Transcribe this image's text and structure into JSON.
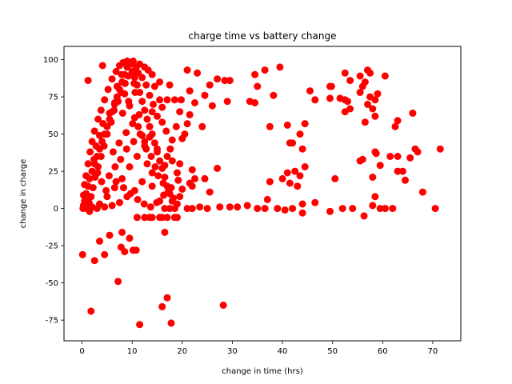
{
  "chart_data": {
    "type": "scatter",
    "title": "charge time vs battery change",
    "xlabel": "change in time (hrs)",
    "ylabel": "change in charge",
    "xlim": [
      -3.6,
      75.6
    ],
    "ylim": [
      -88.9,
      108.9
    ],
    "xticks": [
      0,
      10,
      20,
      30,
      40,
      50,
      60,
      70
    ],
    "yticks": [
      -75,
      -50,
      -25,
      0,
      25,
      50,
      75,
      100
    ],
    "grid": false,
    "marker_color": "#ff0000",
    "series": [
      {
        "points": [
          [
            0.1,
            -31
          ],
          [
            1.8,
            -69
          ],
          [
            2.5,
            -35
          ],
          [
            3.5,
            -22
          ],
          [
            4.5,
            -31
          ],
          [
            5.5,
            -18
          ],
          [
            7.2,
            -49
          ],
          [
            7.8,
            -26
          ],
          [
            8.0,
            -16
          ],
          [
            8.5,
            -29
          ],
          [
            9.5,
            -20
          ],
          [
            10.2,
            -28
          ],
          [
            10.8,
            -28
          ],
          [
            11.5,
            -78
          ],
          [
            16.0,
            -66
          ],
          [
            16.5,
            -16
          ],
          [
            17.0,
            -60
          ],
          [
            17.8,
            -77
          ],
          [
            28.2,
            -65
          ],
          [
            56.3,
            -5
          ],
          [
            1.2,
            86
          ],
          [
            4.1,
            96
          ],
          [
            21.0,
            93
          ],
          [
            23.0,
            91
          ],
          [
            29.5,
            86
          ],
          [
            36.5,
            93
          ],
          [
            39.5,
            95
          ],
          [
            34.5,
            90
          ],
          [
            27.0,
            87
          ],
          [
            28.5,
            86
          ],
          [
            25.5,
            83
          ],
          [
            21.5,
            79
          ],
          [
            24.5,
            76
          ],
          [
            22.5,
            71
          ],
          [
            26.0,
            69
          ],
          [
            29.0,
            72
          ],
          [
            33.5,
            72
          ],
          [
            34.5,
            71
          ],
          [
            35.0,
            82
          ],
          [
            38.2,
            76
          ],
          [
            37.5,
            55
          ],
          [
            41.0,
            56
          ],
          [
            43.5,
            50
          ],
          [
            44.5,
            57
          ],
          [
            41.5,
            44
          ],
          [
            42.0,
            44
          ],
          [
            44.0,
            40
          ],
          [
            44.5,
            28
          ],
          [
            42.5,
            25
          ],
          [
            41.0,
            24
          ],
          [
            40.0,
            20
          ],
          [
            41.5,
            17
          ],
          [
            43.0,
            15
          ],
          [
            43.5,
            22
          ],
          [
            37.5,
            18
          ],
          [
            37.0,
            6
          ],
          [
            39.0,
            0
          ],
          [
            40.5,
            -1
          ],
          [
            42.0,
            0
          ],
          [
            44.0,
            -3
          ],
          [
            44.0,
            3
          ],
          [
            46.5,
            4
          ],
          [
            36.5,
            0
          ],
          [
            35.0,
            0
          ],
          [
            33.0,
            2
          ],
          [
            31.0,
            1
          ],
          [
            29.5,
            1
          ],
          [
            27.5,
            1
          ],
          [
            25.0,
            0
          ],
          [
            23.5,
            1
          ],
          [
            22.0,
            0
          ],
          [
            21.0,
            0
          ],
          [
            27.0,
            27
          ],
          [
            24.5,
            20
          ],
          [
            22.5,
            20
          ],
          [
            22.0,
            26
          ],
          [
            21.5,
            17
          ],
          [
            22.0,
            15
          ],
          [
            25.5,
            11
          ],
          [
            24.0,
            55
          ],
          [
            45.5,
            79
          ],
          [
            49.5,
            82
          ],
          [
            49.8,
            82
          ],
          [
            46.5,
            73
          ],
          [
            49.5,
            74
          ],
          [
            51.5,
            74
          ],
          [
            52.5,
            73
          ],
          [
            53.0,
            72
          ],
          [
            52.5,
            65
          ],
          [
            53.5,
            67
          ],
          [
            52.5,
            91
          ],
          [
            53.5,
            86
          ],
          [
            55.5,
            89
          ],
          [
            57.0,
            93
          ],
          [
            57.5,
            91
          ],
          [
            56.5,
            85
          ],
          [
            56.0,
            82
          ],
          [
            55.5,
            78
          ],
          [
            57.5,
            75
          ],
          [
            58.5,
            73
          ],
          [
            59.0,
            77
          ],
          [
            57.0,
            70
          ],
          [
            58.0,
            67
          ],
          [
            58.5,
            62
          ],
          [
            56.5,
            58
          ],
          [
            60.5,
            89
          ],
          [
            62.5,
            55
          ],
          [
            63.0,
            59
          ],
          [
            66.0,
            64
          ],
          [
            56.0,
            33
          ],
          [
            58.5,
            38
          ],
          [
            58.7,
            37
          ],
          [
            58.0,
            21
          ],
          [
            58.5,
            8
          ],
          [
            59.5,
            29
          ],
          [
            61.5,
            35
          ],
          [
            63.0,
            35
          ],
          [
            63.0,
            25
          ],
          [
            64.0,
            25
          ],
          [
            65.5,
            34
          ],
          [
            64.5,
            19
          ],
          [
            66.5,
            40
          ],
          [
            67.0,
            38
          ],
          [
            68.0,
            11
          ],
          [
            71.5,
            40
          ],
          [
            70.5,
            0
          ],
          [
            62.0,
            0
          ],
          [
            60.5,
            0
          ],
          [
            59.5,
            0
          ],
          [
            54.0,
            0
          ],
          [
            52.0,
            0
          ],
          [
            49.5,
            -2
          ],
          [
            50.5,
            20
          ],
          [
            55.5,
            32
          ],
          [
            58.0,
            2
          ],
          [
            0.3,
            2
          ],
          [
            0.5,
            5
          ],
          [
            0.8,
            10
          ],
          [
            1.2,
            15
          ],
          [
            1.5,
            20
          ],
          [
            2.0,
            25
          ],
          [
            2.5,
            30
          ],
          [
            3.0,
            35
          ],
          [
            3.5,
            40
          ],
          [
            4.0,
            45
          ],
          [
            4.5,
            50
          ],
          [
            5.0,
            55
          ],
          [
            5.5,
            60
          ],
          [
            6.0,
            65
          ],
          [
            6.5,
            70
          ],
          [
            7.0,
            75
          ],
          [
            7.5,
            80
          ],
          [
            8.0,
            85
          ],
          [
            8.5,
            90
          ],
          [
            9.0,
            95
          ],
          [
            9.5,
            98
          ],
          [
            10.0,
            92
          ],
          [
            10.5,
            88
          ],
          [
            11.0,
            83
          ],
          [
            11.5,
            78
          ],
          [
            12.0,
            72
          ],
          [
            12.5,
            66
          ],
          [
            13.0,
            60
          ],
          [
            13.5,
            55
          ],
          [
            14.0,
            50
          ],
          [
            14.5,
            44
          ],
          [
            15.0,
            38
          ],
          [
            15.5,
            32
          ],
          [
            16.0,
            27
          ],
          [
            16.5,
            21
          ],
          [
            17.0,
            15
          ],
          [
            17.5,
            10
          ],
          [
            18.0,
            5
          ],
          [
            18.5,
            0
          ],
          [
            19.0,
            3
          ],
          [
            19.5,
            8
          ],
          [
            20.0,
            13
          ],
          [
            20.5,
            50
          ],
          [
            21.0,
            57
          ],
          [
            21.5,
            63
          ],
          [
            18.5,
            73
          ],
          [
            17.0,
            73
          ],
          [
            15.5,
            73
          ],
          [
            14.5,
            82
          ],
          [
            15.5,
            85
          ],
          [
            17.5,
            83
          ],
          [
            16.0,
            68
          ],
          [
            14.0,
            65
          ],
          [
            13.5,
            48
          ],
          [
            12.5,
            45
          ],
          [
            15.0,
            40
          ],
          [
            17.0,
            35
          ],
          [
            18.0,
            32
          ],
          [
            16.5,
            29
          ],
          [
            14.0,
            24
          ],
          [
            12.0,
            18
          ],
          [
            10.5,
            12
          ],
          [
            9.0,
            8
          ],
          [
            7.5,
            4
          ],
          [
            6.0,
            2
          ],
          [
            4.5,
            1
          ],
          [
            3.0,
            0
          ],
          [
            2.0,
            1
          ],
          [
            1.0,
            0
          ],
          [
            1.5,
            -2
          ],
          [
            3.5,
            3
          ],
          [
            5.0,
            8
          ],
          [
            6.5,
            14
          ],
          [
            8.0,
            20
          ],
          [
            9.5,
            28
          ],
          [
            11.0,
            35
          ],
          [
            12.5,
            42
          ],
          [
            13.0,
            30
          ],
          [
            14.0,
            15
          ],
          [
            15.5,
            5
          ],
          [
            16.5,
            0
          ],
          [
            17.5,
            0
          ],
          [
            18.5,
            -6
          ],
          [
            17.0,
            -6
          ],
          [
            15.5,
            -6
          ],
          [
            14.0,
            -6
          ],
          [
            12.5,
            -6
          ],
          [
            11.0,
            -6
          ],
          [
            13.5,
            -6
          ],
          [
            16.0,
            -6
          ],
          [
            19.0,
            -6
          ],
          [
            9.8,
            97
          ],
          [
            10.2,
            99
          ],
          [
            11.5,
            97
          ],
          [
            12.5,
            95
          ],
          [
            13.2,
            93
          ],
          [
            14.0,
            90
          ],
          [
            9.0,
            99
          ],
          [
            8.2,
            98
          ],
          [
            7.5,
            96
          ],
          [
            6.8,
            92
          ],
          [
            6.0,
            87
          ],
          [
            5.2,
            80
          ],
          [
            4.5,
            73
          ],
          [
            3.8,
            66
          ],
          [
            3.2,
            60
          ],
          [
            2.5,
            52
          ],
          [
            2.0,
            45
          ],
          [
            1.6,
            38
          ],
          [
            1.2,
            30
          ],
          [
            0.8,
            22
          ],
          [
            0.5,
            16
          ],
          [
            0.3,
            9
          ],
          [
            2.8,
            42
          ],
          [
            3.5,
            49
          ],
          [
            4.2,
            57
          ],
          [
            5.5,
            64
          ],
          [
            6.5,
            71
          ],
          [
            7.0,
            82
          ],
          [
            8.5,
            77
          ],
          [
            9.5,
            69
          ],
          [
            10.5,
            61
          ],
          [
            11.2,
            55
          ],
          [
            12.0,
            49
          ],
          [
            12.8,
            40
          ],
          [
            13.8,
            35
          ],
          [
            14.6,
            28
          ],
          [
            15.2,
            22
          ],
          [
            16.2,
            17
          ],
          [
            17.2,
            11
          ],
          [
            18.2,
            7
          ],
          [
            19.0,
            24
          ],
          [
            19.5,
            30
          ],
          [
            20.0,
            47
          ],
          [
            19.8,
            73
          ],
          [
            19.5,
            65
          ],
          [
            18.8,
            55
          ],
          [
            18.0,
            46
          ],
          [
            17.6,
            40
          ],
          [
            16.8,
            52
          ],
          [
            16.0,
            58
          ],
          [
            15.0,
            62
          ],
          [
            14.2,
            70
          ],
          [
            13.5,
            76
          ],
          [
            12.8,
            83
          ],
          [
            12.0,
            88
          ],
          [
            11.2,
            91
          ],
          [
            10.8,
            95
          ],
          [
            9.2,
            89
          ],
          [
            8.6,
            84
          ],
          [
            7.8,
            78
          ],
          [
            7.2,
            72
          ],
          [
            6.4,
            66
          ],
          [
            5.8,
            58
          ],
          [
            5.0,
            50
          ],
          [
            4.4,
            42
          ],
          [
            3.8,
            35
          ],
          [
            3.2,
            28
          ],
          [
            2.6,
            21
          ],
          [
            2.2,
            14
          ],
          [
            1.8,
            8
          ],
          [
            1.4,
            4
          ],
          [
            1.0,
            6
          ],
          [
            0.6,
            3
          ],
          [
            0.2,
            0
          ],
          [
            6.2,
            38
          ],
          [
            7.4,
            44
          ],
          [
            8.8,
            51
          ],
          [
            10.1,
            57
          ],
          [
            11.4,
            63
          ],
          [
            8.1,
            64
          ],
          [
            9.3,
            72
          ],
          [
            10.6,
            78
          ],
          [
            7.9,
            90
          ],
          [
            10.4,
            84
          ],
          [
            6.6,
            28
          ],
          [
            7.7,
            33
          ],
          [
            8.9,
            40
          ],
          [
            10.3,
            45
          ],
          [
            11.6,
            50
          ],
          [
            5.4,
            22
          ],
          [
            6.8,
            18
          ],
          [
            8.3,
            14
          ],
          [
            9.7,
            10
          ],
          [
            11.1,
            6
          ],
          [
            12.4,
            3
          ],
          [
            13.7,
            1
          ],
          [
            14.9,
            4
          ],
          [
            16.3,
            9
          ],
          [
            17.8,
            14
          ],
          [
            19.2,
            19
          ],
          [
            4.8,
            12
          ],
          [
            3.9,
            18
          ],
          [
            3.1,
            24
          ],
          [
            2.4,
            33
          ]
        ]
      }
    ]
  }
}
